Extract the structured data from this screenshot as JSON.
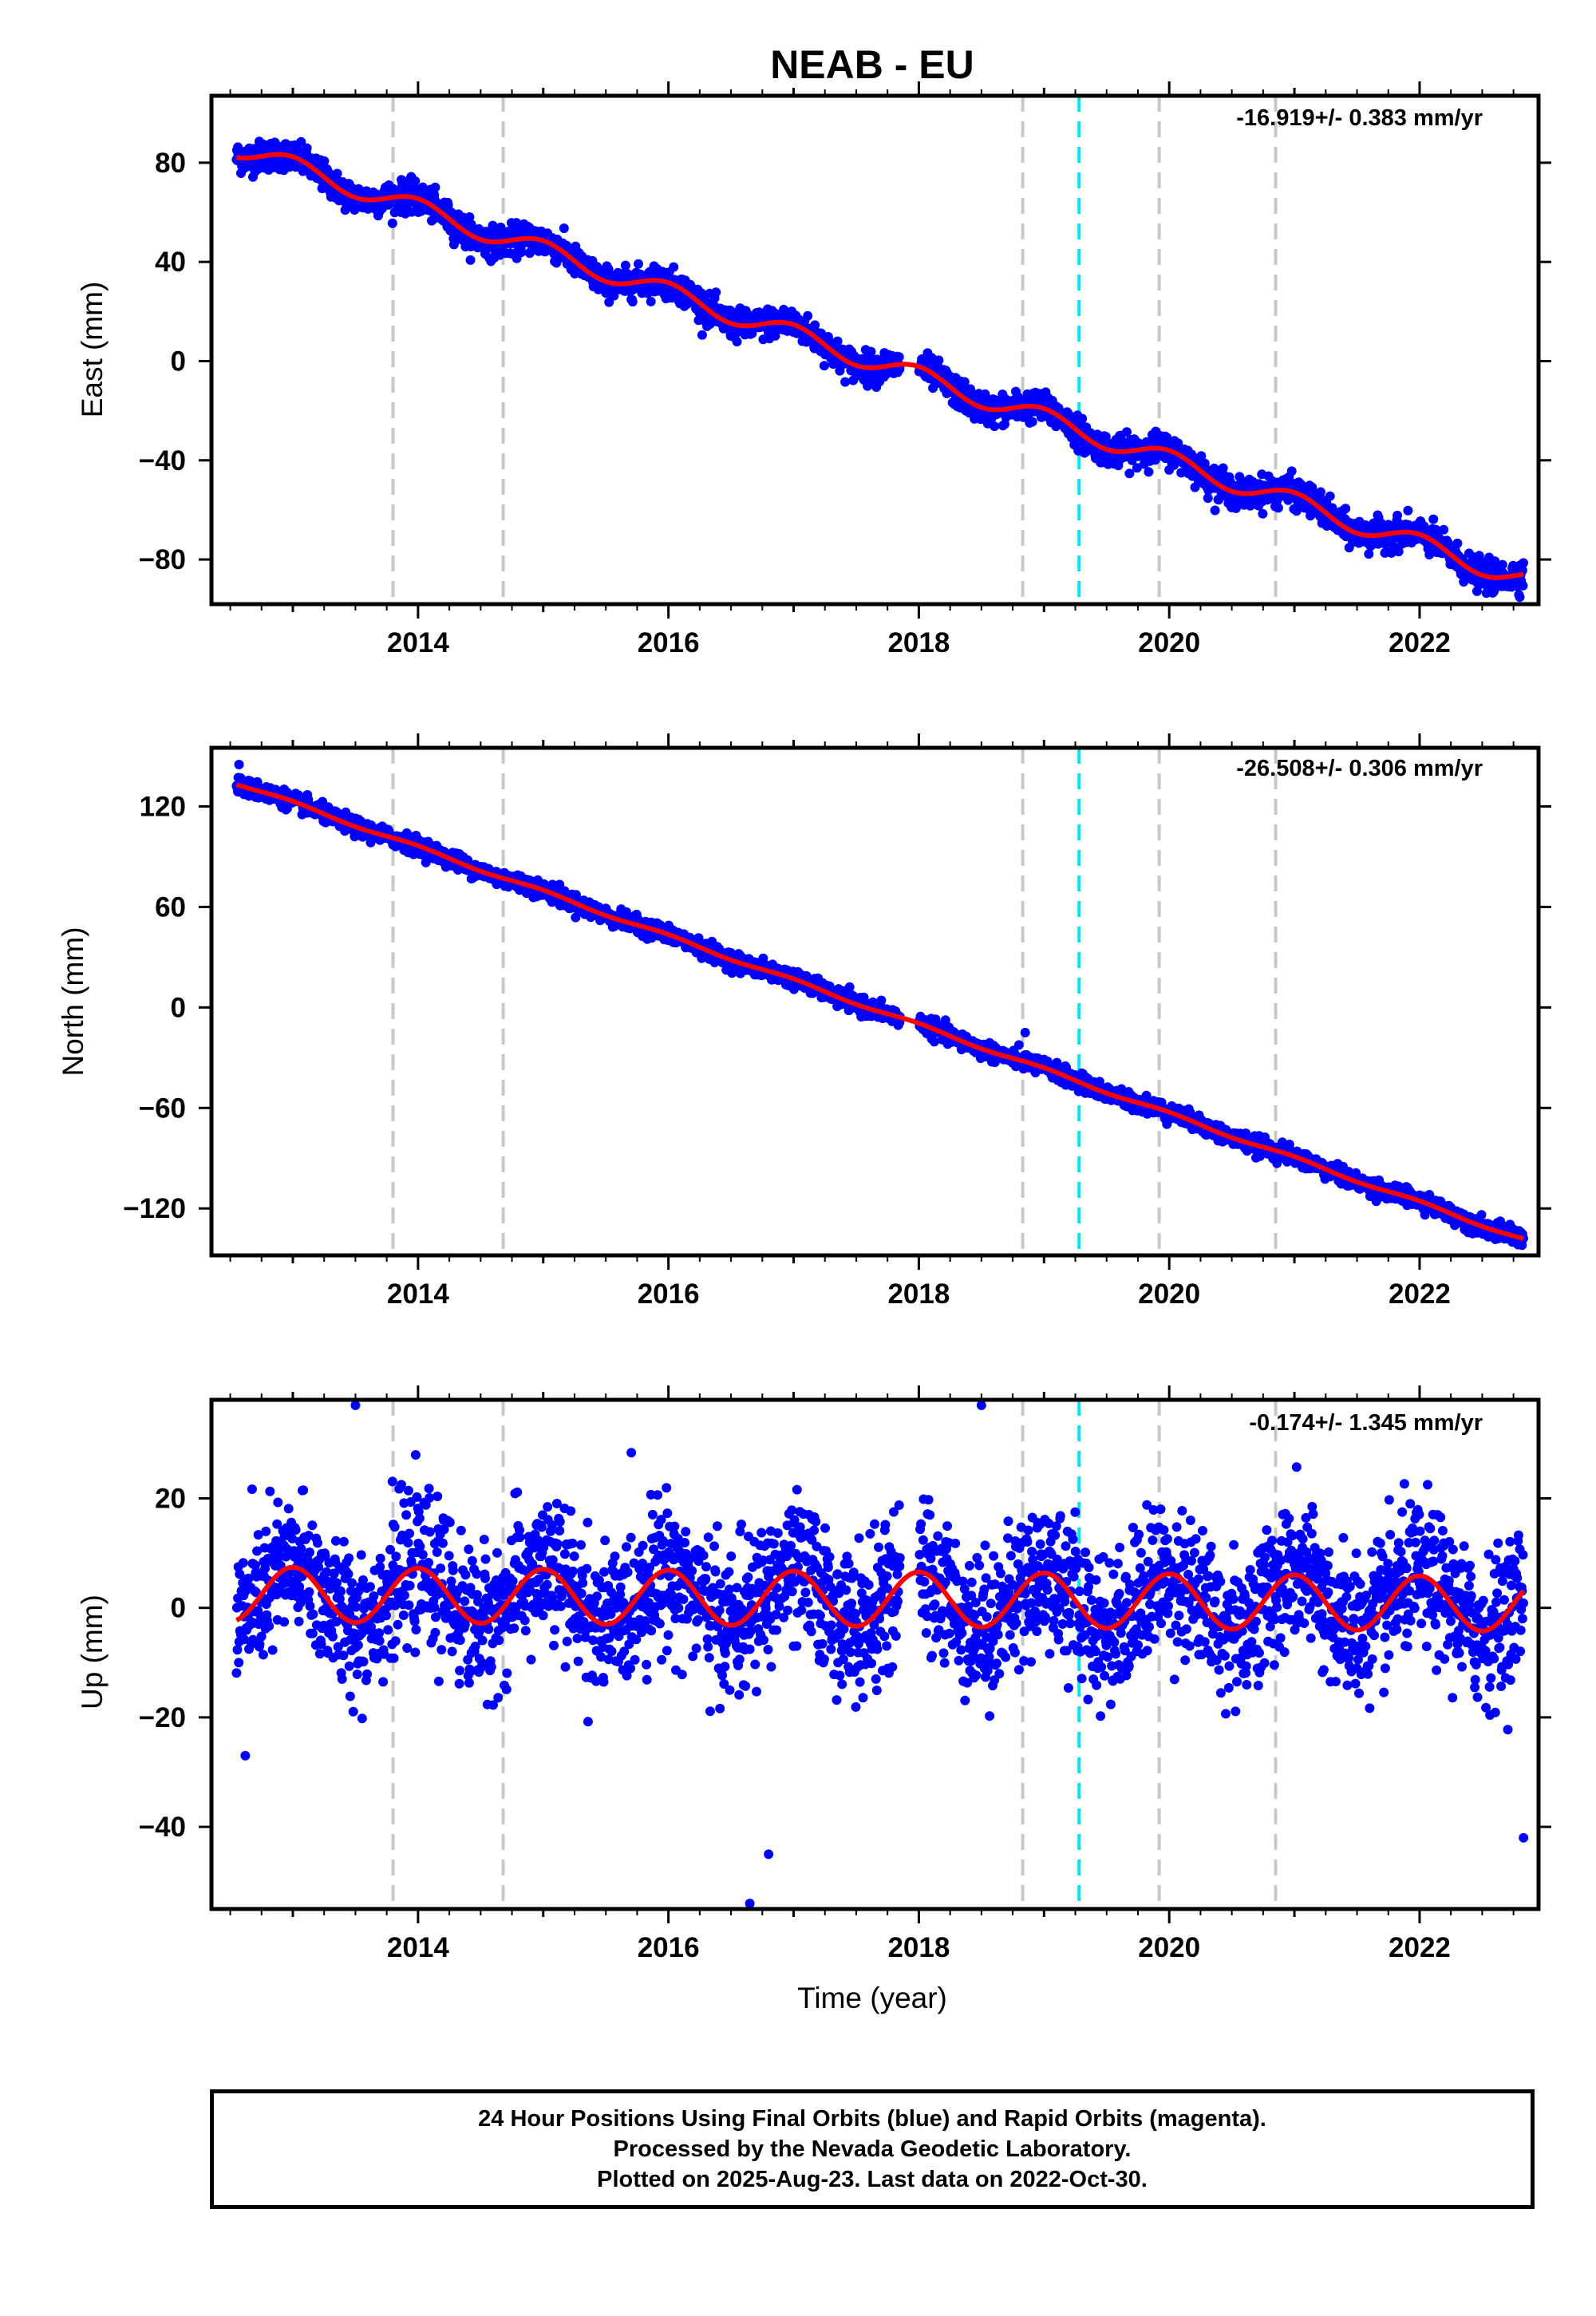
{
  "title": "NEAB - EU",
  "colors": {
    "points": "#0000ff",
    "model": "#ff0000",
    "event_line": "#c8c8c8",
    "antenna_change_line": "#00e5ee",
    "frame": "#000000"
  },
  "chart_data": [
    {
      "type": "scatter",
      "ylabel": "East (mm)",
      "xlabel": "",
      "rate_label": "-16.919+/- 0.383 mm/yr",
      "xlim": [
        2012.35,
        2022.95
      ],
      "ylim": [
        -98,
        107
      ],
      "yticks": [
        -80,
        -40,
        0,
        40,
        80
      ],
      "xticks": [
        2014,
        2016,
        2018,
        2020,
        2022
      ],
      "event_lines": [
        2013.8,
        2014.68,
        2018.83,
        2019.92,
        2020.85
      ],
      "antenna_lines": [
        2019.28
      ],
      "series": [
        {
          "marker": "points",
          "x_start": 2012.55,
          "x_end": 2022.83,
          "trend_start": 86,
          "rate": -16.919,
          "annual_amp": 4,
          "noise": 3,
          "outliers": []
        },
        {
          "marker": "model",
          "x_start": 2012.55,
          "x_end": 2022.83,
          "trend_start": 86,
          "rate": -16.919,
          "annual_amp": 4
        }
      ]
    },
    {
      "type": "scatter",
      "ylabel": "North (mm)",
      "xlabel": "",
      "rate_label": "-26.508+/- 0.306 mm/yr",
      "xlim": [
        2012.35,
        2022.95
      ],
      "ylim": [
        -148,
        155
      ],
      "yticks": [
        -120,
        -60,
        0,
        60,
        120
      ],
      "xticks": [
        2014,
        2016,
        2018,
        2020,
        2022
      ],
      "event_lines": [
        2013.8,
        2014.68,
        2018.83,
        2019.92,
        2020.85
      ],
      "antenna_lines": [
        2019.28
      ],
      "series": [
        {
          "marker": "points",
          "x_start": 2012.55,
          "x_end": 2022.83,
          "trend_start": 134,
          "rate": -26.508,
          "annual_amp": 1,
          "noise": 2.5,
          "outliers": [
            [
              2018.85,
              -15
            ],
            [
              2012.57,
              145
            ]
          ]
        },
        {
          "marker": "model",
          "x_start": 2012.55,
          "x_end": 2022.83,
          "trend_start": 134,
          "rate": -26.508,
          "annual_amp": 1
        }
      ]
    },
    {
      "type": "scatter",
      "ylabel": "Up (mm)",
      "xlabel": "Time (year)",
      "rate_label": "-0.174+/- 1.345 mm/yr",
      "xlim": [
        2012.35,
        2022.95
      ],
      "ylim": [
        -55,
        38
      ],
      "yticks": [
        -40,
        -20,
        0,
        20
      ],
      "xticks": [
        2014,
        2016,
        2018,
        2020,
        2022
      ],
      "event_lines": [
        2013.8,
        2014.68,
        2018.83,
        2019.92,
        2020.85
      ],
      "antenna_lines": [
        2019.28
      ],
      "series": [
        {
          "marker": "points",
          "x_start": 2012.55,
          "x_end": 2022.83,
          "trend_start": 2.5,
          "rate": -0.174,
          "annual_amp": 5,
          "noise": 6.5,
          "outliers": [
            [
              2013.5,
              37
            ],
            [
              2018.5,
              37
            ],
            [
              2016.65,
              -54
            ],
            [
              2016.8,
              -45
            ],
            [
              2012.62,
              -27
            ],
            [
              2022.83,
              -42
            ]
          ]
        },
        {
          "marker": "model",
          "x_start": 2012.55,
          "x_end": 2022.83,
          "trend_start": 2.5,
          "rate": -0.174,
          "annual_amp": 5
        }
      ]
    }
  ],
  "footer": {
    "line1": "24 Hour Positions Using Final Orbits (blue) and Rapid Orbits (magenta).",
    "line2": "Processed by the Nevada Geodetic Laboratory.",
    "line3": "Plotted on 2025-Aug-23. Last data on 2022-Oct-30."
  }
}
